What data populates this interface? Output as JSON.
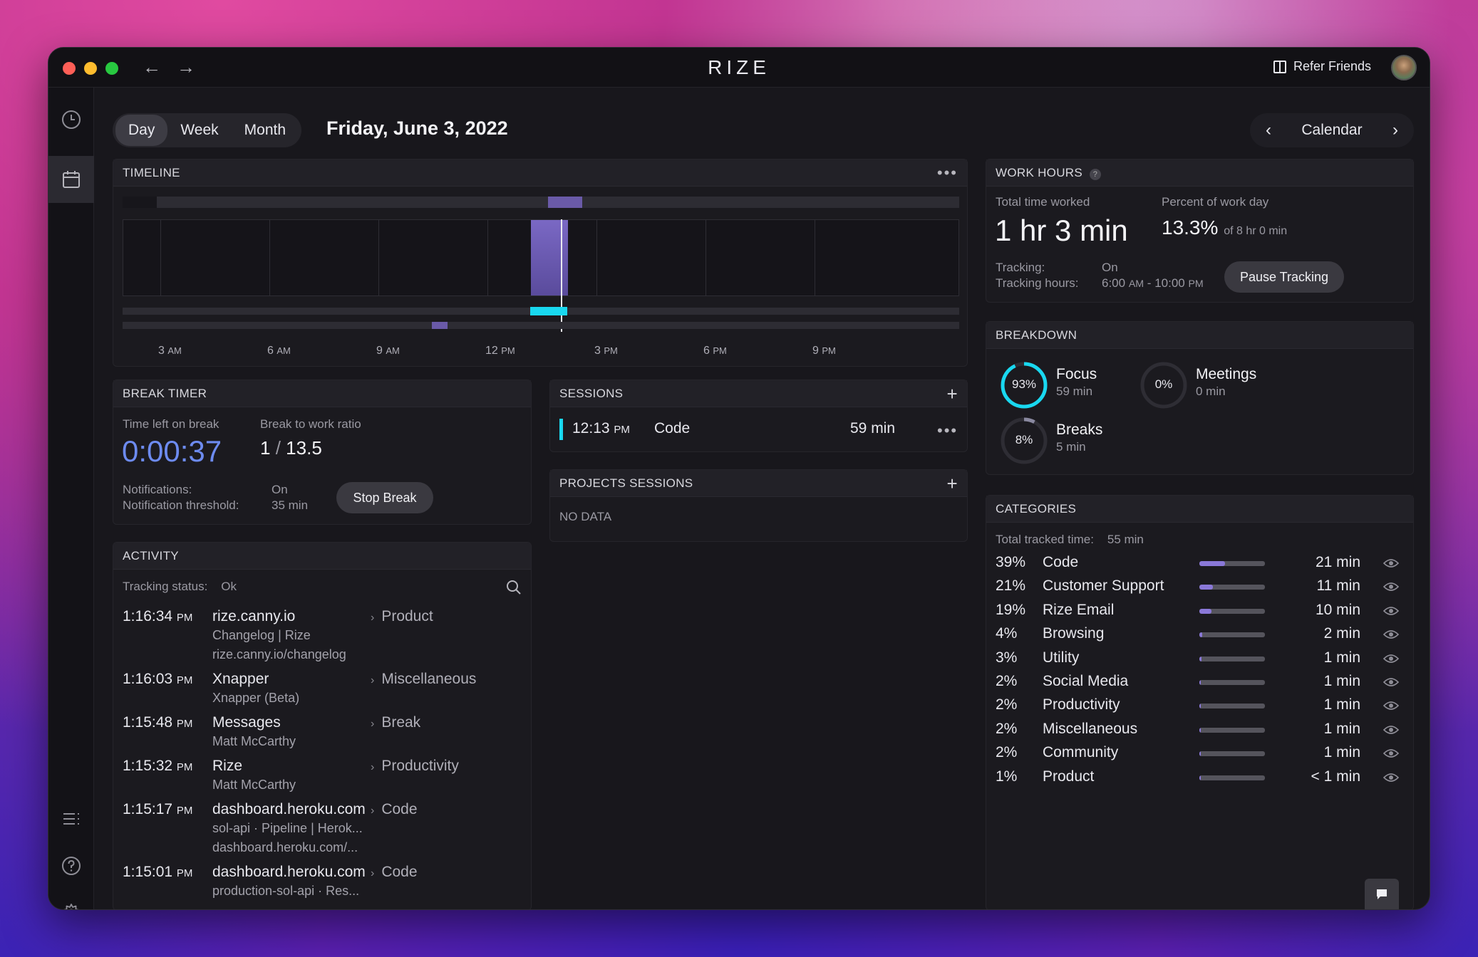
{
  "window": {
    "title": "RIZE",
    "refer_label": "Refer Friends"
  },
  "view_tabs": [
    "Day",
    "Week",
    "Month"
  ],
  "active_tab": "Day",
  "date_title": "Friday, June 3, 2022",
  "calendar_nav": {
    "label": "Calendar"
  },
  "timeline": {
    "title": "TIMELINE",
    "hours": [
      {
        "h": "3",
        "p": "AM"
      },
      {
        "h": "6",
        "p": "AM"
      },
      {
        "h": "9",
        "p": "AM"
      },
      {
        "h": "12",
        "p": "PM"
      },
      {
        "h": "3",
        "p": "PM"
      },
      {
        "h": "6",
        "p": "PM"
      },
      {
        "h": "9",
        "p": "PM"
      }
    ]
  },
  "work_hours": {
    "title": "WORK HOURS",
    "help": "?",
    "total_label": "Total time worked",
    "total_value": "1 hr 3 min",
    "percent_label": "Percent of work day",
    "percent_value": "13.3%",
    "percent_of": "of 8 hr 0 min",
    "tracking_label": "Tracking:",
    "tracking_value": "On",
    "hours_label": "Tracking hours:",
    "hours_start": "6:00",
    "hours_start_p": "AM",
    "hours_end": "10:00",
    "hours_end_p": "PM",
    "hours_sep": "-",
    "pause_label": "Pause Tracking"
  },
  "breakdown": {
    "title": "BREAKDOWN",
    "items": [
      {
        "pct": "93%",
        "name": "Focus",
        "time": "59 min",
        "value": 93,
        "color": "#19d8f0"
      },
      {
        "pct": "0%",
        "name": "Meetings",
        "time": "0 min",
        "value": 0,
        "color": "#8a78d8"
      },
      {
        "pct": "8%",
        "name": "Breaks",
        "time": "5 min",
        "value": 8,
        "color": "#8a89a0"
      }
    ]
  },
  "categories": {
    "title": "CATEGORIES",
    "total_label": "Total tracked time:",
    "total_value": "55 min",
    "rows": [
      {
        "pct": "39%",
        "name": "Code",
        "time": "21 min",
        "fill": 0.39
      },
      {
        "pct": "21%",
        "name": "Customer Support",
        "time": "11 min",
        "fill": 0.21
      },
      {
        "pct": "19%",
        "name": "Rize Email",
        "time": "10 min",
        "fill": 0.19
      },
      {
        "pct": "4%",
        "name": "Browsing",
        "time": "2 min",
        "fill": 0.04
      },
      {
        "pct": "3%",
        "name": "Utility",
        "time": "1 min",
        "fill": 0.03
      },
      {
        "pct": "2%",
        "name": "Social Media",
        "time": "1 min",
        "fill": 0.02
      },
      {
        "pct": "2%",
        "name": "Productivity",
        "time": "1 min",
        "fill": 0.02
      },
      {
        "pct": "2%",
        "name": "Miscellaneous",
        "time": "1 min",
        "fill": 0.02
      },
      {
        "pct": "2%",
        "name": "Community",
        "time": "1 min",
        "fill": 0.02
      },
      {
        "pct": "1%",
        "name": "Product",
        "time": "< 1 min",
        "fill": 0.01
      }
    ]
  },
  "break_timer": {
    "title": "BREAK TIMER",
    "left_label": "Time left on break",
    "left_value": "0:00:37",
    "ratio_label": "Break to work ratio",
    "ratio_a": "1",
    "ratio_sep": "/",
    "ratio_b": "13.5",
    "notif_label": "Notifications:",
    "notif_value": "On",
    "threshold_label": "Notification threshold:",
    "threshold_value": "35 min",
    "stop_label": "Stop Break"
  },
  "sessions": {
    "title": "SESSIONS",
    "items": [
      {
        "time": "12:13",
        "period": "PM",
        "name": "Code",
        "duration": "59 min"
      }
    ]
  },
  "project_sessions": {
    "title": "PROJECTS SESSIONS",
    "empty": "NO DATA"
  },
  "activity": {
    "title": "ACTIVITY",
    "status_label": "Tracking status:",
    "status_value": "Ok",
    "rows": [
      {
        "time": "1:16:34",
        "p": "PM",
        "app": "rize.canny.io",
        "sub1": "Changelog | Rize",
        "sub2": "rize.canny.io/changelog",
        "cat": "Product"
      },
      {
        "time": "1:16:03",
        "p": "PM",
        "app": "Xnapper",
        "sub1": "Xnapper (Beta)",
        "sub2": "",
        "cat": "Miscellaneous"
      },
      {
        "time": "1:15:48",
        "p": "PM",
        "app": "Messages",
        "sub1": "Matt McCarthy",
        "sub2": "",
        "cat": "Break"
      },
      {
        "time": "1:15:32",
        "p": "PM",
        "app": "Rize",
        "sub1": "Matt McCarthy",
        "sub2": "",
        "cat": "Productivity"
      },
      {
        "time": "1:15:17",
        "p": "PM",
        "app": "dashboard.heroku.com",
        "sub1": "sol-api · Pipeline | Herok...",
        "sub2": "dashboard.heroku.com/...",
        "cat": "Code"
      },
      {
        "time": "1:15:01",
        "p": "PM",
        "app": "dashboard.heroku.com",
        "sub1": "production-sol-api · Res...",
        "sub2": "",
        "cat": "Code"
      }
    ]
  },
  "colors": {
    "accent": "#6d8bf0",
    "cyan": "#19d8f0",
    "purple": "#6a5aa8",
    "bg": "#18171c"
  }
}
